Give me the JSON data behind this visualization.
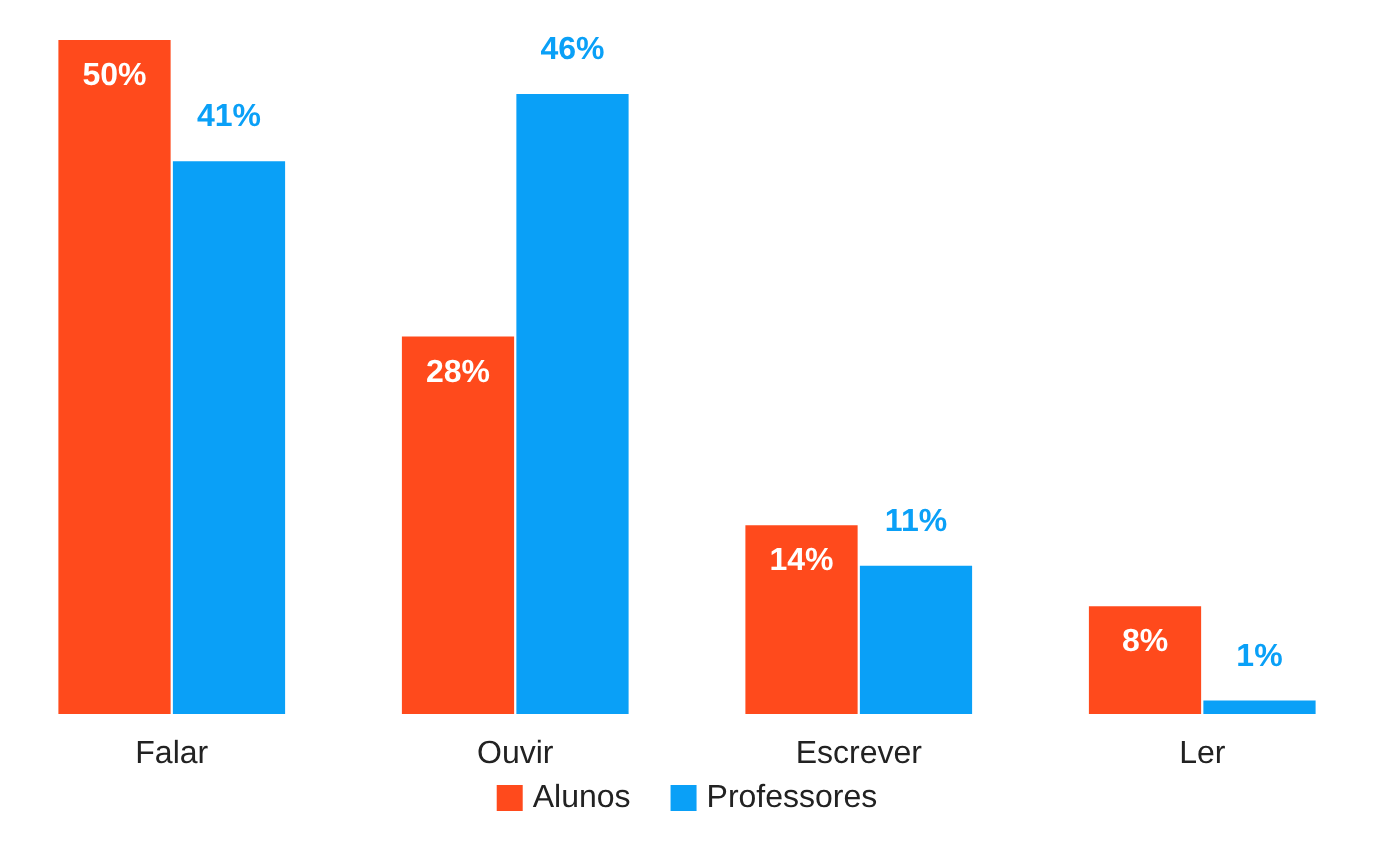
{
  "chart_data": {
    "type": "bar",
    "categories": [
      "Falar",
      "Ouvir",
      "Escrever",
      "Ler"
    ],
    "series": [
      {
        "name": "Alunos",
        "color": "#ff4a1c",
        "values": [
          50,
          28,
          14,
          8
        ],
        "value_labels": [
          "50%",
          "28%",
          "14%",
          "8%"
        ]
      },
      {
        "name": "Professores",
        "color": "#0aa0f7",
        "values": [
          41,
          46,
          11,
          1
        ],
        "value_labels": [
          "41%",
          "46%",
          "11%",
          "1%"
        ]
      }
    ],
    "legend": "bottom"
  }
}
